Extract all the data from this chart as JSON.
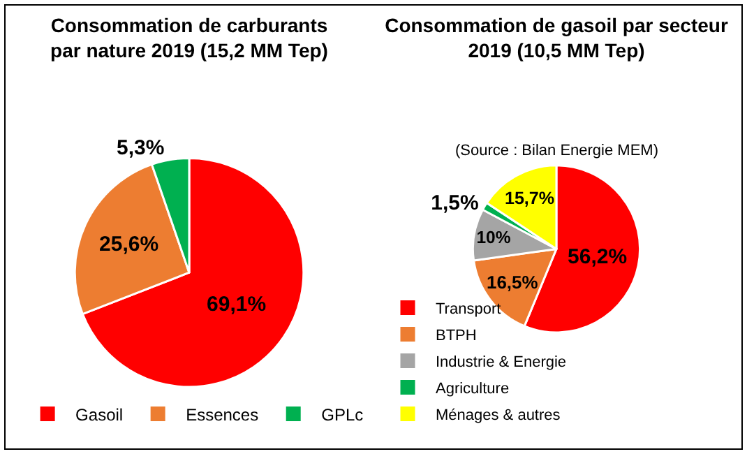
{
  "chart_data": [
    {
      "type": "pie",
      "title": "Consommation de carburants\npar nature 2019 (15,2 MM Tep)",
      "categories": [
        "Gasoil",
        "Essences",
        "GPLc"
      ],
      "values": [
        69.1,
        25.6,
        5.3
      ],
      "colors": [
        "#ff0000",
        "#ed7d31",
        "#00b050"
      ],
      "value_labels": [
        "69,1%",
        "25,6%",
        "5,3%"
      ],
      "legend": "bottom"
    },
    {
      "type": "pie",
      "title": "Consommation de gasoil par secteur\n2019 (10,5 MM Tep)",
      "annotations": [
        "(Source : Bilan Energie MEM)"
      ],
      "categories": [
        "Transport",
        "BTPH",
        "Industrie & Energie",
        "Agriculture",
        "Ménages & autres"
      ],
      "values": [
        56.2,
        16.5,
        10,
        1.5,
        15.7
      ],
      "colors": [
        "#ff0000",
        "#ed7d31",
        "#a5a5a5",
        "#00b050",
        "#ffff00"
      ],
      "value_labels": [
        "56,2%",
        "16,5%",
        "10%",
        "1,5%",
        "15,7%"
      ],
      "legend": "bottom"
    }
  ]
}
